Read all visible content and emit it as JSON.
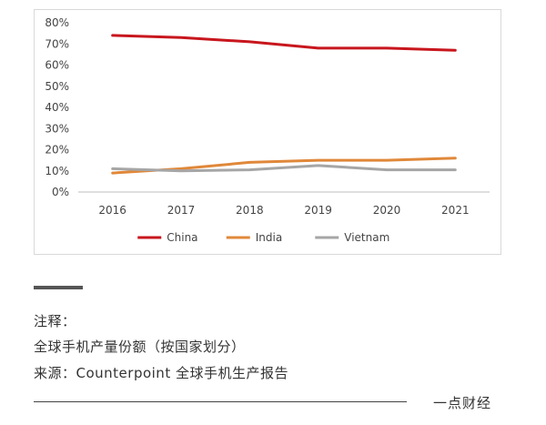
{
  "chart_data": {
    "type": "line",
    "categories": [
      "2016",
      "2017",
      "2018",
      "2019",
      "2020",
      "2021"
    ],
    "y_tick_labels": [
      "0%",
      "10%",
      "20%",
      "30%",
      "40%",
      "50%",
      "60%",
      "70%",
      "80%"
    ],
    "y_ticks": [
      0,
      10,
      20,
      30,
      40,
      50,
      60,
      70,
      80
    ],
    "ylim": [
      0,
      80
    ],
    "y_unit": "%",
    "grid": false,
    "legend_position": "bottom",
    "series": [
      {
        "name": "China",
        "color": "#c8161d",
        "values": [
          74,
          73,
          71,
          68,
          68,
          67
        ]
      },
      {
        "name": "India",
        "color": "#e0883a",
        "values": [
          9,
          11,
          14,
          15,
          15,
          16
        ]
      },
      {
        "name": "Vietnam",
        "color": "#a6a6a6",
        "values": [
          11,
          10,
          10.5,
          12.5,
          10.5,
          10.5
        ]
      }
    ]
  },
  "notes": {
    "label": "注释：",
    "line2": "全球手机产量份额（按国家划分）",
    "line3": "来源：Counterpoint 全球手机生产报告"
  },
  "brand": "一点财经"
}
